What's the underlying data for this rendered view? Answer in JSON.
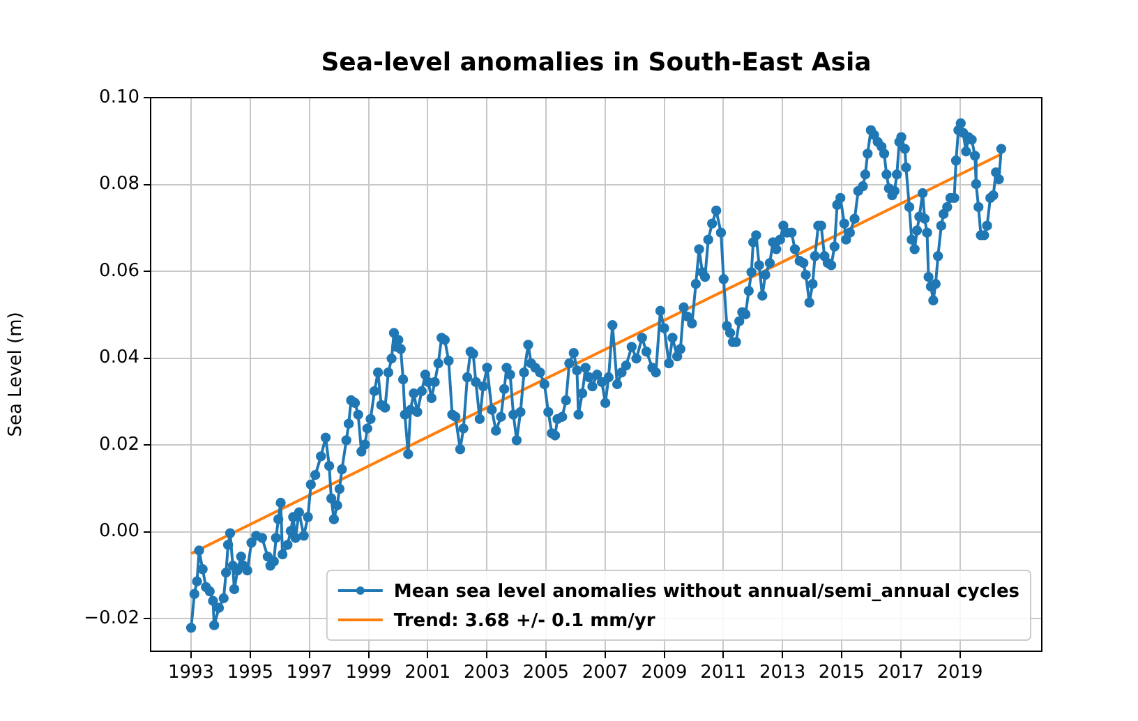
{
  "chart_data": {
    "type": "line",
    "title": "Sea-level anomalies in South-East Asia",
    "ylabel": "Sea Level (m)",
    "xlim": [
      1991.63,
      2021.77
    ],
    "ylim": [
      -0.0275,
      0.1
    ],
    "xticks": [
      1993,
      1995,
      1997,
      1999,
      2001,
      2003,
      2005,
      2007,
      2009,
      2011,
      2013,
      2015,
      2017,
      2019
    ],
    "yticks": [
      {
        "value": -0.02,
        "label": "−0.02"
      },
      {
        "value": 0,
        "label": "0.00"
      },
      {
        "value": 0.02,
        "label": "0.02"
      },
      {
        "value": 0.04,
        "label": "0.04"
      },
      {
        "value": 0.06,
        "label": "0.06"
      },
      {
        "value": 0.08,
        "label": "0.08"
      },
      {
        "value": 0.1,
        "label": "0.10"
      }
    ],
    "grid": true,
    "legend": "bottom right",
    "marker": "circle",
    "line_style": "solid",
    "series": [
      {
        "name": "Mean sea level anomalies without annual/semi_annual cycles",
        "color": "#1f77b4",
        "x": [
          1993.0,
          1993.11,
          1993.2,
          1993.27,
          1993.39,
          1993.5,
          1993.63,
          1993.74,
          1993.78,
          1993.94,
          1994.1,
          1994.18,
          1994.25,
          1994.32,
          1994.41,
          1994.46,
          1994.57,
          1994.69,
          1994.77,
          1994.9,
          1995.04,
          1995.2,
          1995.4,
          1995.59,
          1995.68,
          1995.8,
          1995.87,
          1995.95,
          1996.03,
          1996.09,
          1996.26,
          1996.37,
          1996.45,
          1996.53,
          1996.65,
          1996.81,
          1996.95,
          1997.05,
          1997.2,
          1997.39,
          1997.55,
          1997.67,
          1997.74,
          1997.83,
          1997.94,
          1998.02,
          1998.1,
          1998.25,
          1998.33,
          1998.41,
          1998.54,
          1998.65,
          1998.76,
          1998.88,
          1998.96,
          1999.07,
          1999.2,
          1999.32,
          1999.43,
          1999.56,
          1999.67,
          1999.78,
          1999.86,
          1999.94,
          2000.01,
          2000.09,
          2000.17,
          2000.23,
          2000.34,
          2000.42,
          2000.53,
          2000.65,
          2000.8,
          2000.92,
          2001.02,
          2001.13,
          2001.24,
          2001.36,
          2001.47,
          2001.58,
          2001.71,
          2001.83,
          2001.94,
          2002.1,
          2002.21,
          2002.34,
          2002.45,
          2002.54,
          2002.63,
          2002.76,
          2002.88,
          2003.01,
          2003.17,
          2003.31,
          2003.48,
          2003.59,
          2003.67,
          2003.79,
          2003.9,
          2004.01,
          2004.14,
          2004.26,
          2004.4,
          2004.5,
          2004.64,
          2004.8,
          2004.95,
          2005.08,
          2005.2,
          2005.31,
          2005.39,
          2005.55,
          2005.68,
          2005.79,
          2005.94,
          2006.05,
          2006.1,
          2006.23,
          2006.34,
          2006.46,
          2006.57,
          2006.73,
          2006.89,
          2007.01,
          2007.12,
          2007.25,
          2007.41,
          2007.56,
          2007.71,
          2007.9,
          2008.06,
          2008.25,
          2008.4,
          2008.6,
          2008.72,
          2008.87,
          2009.0,
          2009.16,
          2009.28,
          2009.44,
          2009.55,
          2009.66,
          2009.78,
          2009.94,
          2010.07,
          2010.18,
          2010.29,
          2010.38,
          2010.49,
          2010.62,
          2010.76,
          2010.92,
          2011.01,
          2011.12,
          2011.23,
          2011.32,
          2011.43,
          2011.54,
          2011.64,
          2011.75,
          2011.86,
          2011.95,
          2012.01,
          2012.11,
          2012.21,
          2012.32,
          2012.42,
          2012.57,
          2012.68,
          2012.79,
          2012.92,
          2013.03,
          2013.15,
          2013.31,
          2013.42,
          2013.58,
          2013.71,
          2013.79,
          2013.91,
          2014.02,
          2014.1,
          2014.21,
          2014.31,
          2014.42,
          2014.53,
          2014.65,
          2014.76,
          2014.85,
          2014.96,
          2015.09,
          2015.15,
          2015.28,
          2015.44,
          2015.56,
          2015.72,
          2015.8,
          2015.88,
          2015.99,
          2016.1,
          2016.22,
          2016.35,
          2016.44,
          2016.52,
          2016.6,
          2016.71,
          2016.79,
          2016.87,
          2016.95,
          2017.02,
          2017.14,
          2017.18,
          2017.29,
          2017.37,
          2017.47,
          2017.55,
          2017.63,
          2017.74,
          2017.81,
          2017.89,
          2017.94,
          2018.02,
          2018.1,
          2018.18,
          2018.26,
          2018.37,
          2018.45,
          2018.57,
          2018.68,
          2018.81,
          2018.87,
          2018.95,
          2019.03,
          2019.11,
          2019.21,
          2019.29,
          2019.4,
          2019.51,
          2019.55,
          2019.63,
          2019.71,
          2019.82,
          2019.92,
          2020.03,
          2020.13,
          2020.22,
          2020.32,
          2020.4
        ],
        "values": [
          -0.0221,
          -0.0143,
          -0.0114,
          -0.0043,
          -0.0086,
          -0.0127,
          -0.0137,
          -0.0159,
          -0.0215,
          -0.0175,
          -0.0153,
          -0.0094,
          -0.003,
          -0.0003,
          -0.0078,
          -0.0132,
          -0.0089,
          -0.0057,
          -0.0078,
          -0.0089,
          -0.0025,
          -0.0009,
          -0.0014,
          -0.0057,
          -0.0078,
          -0.0068,
          -0.0014,
          0.0029,
          0.0067,
          -0.0052,
          -0.003,
          0.0002,
          0.0034,
          -0.0014,
          0.0045,
          -0.0009,
          0.0034,
          0.0109,
          0.0131,
          0.0174,
          0.0217,
          0.0152,
          0.0077,
          0.0029,
          0.0061,
          0.0099,
          0.0144,
          0.0211,
          0.0249,
          0.0303,
          0.0297,
          0.027,
          0.0185,
          0.0201,
          0.0238,
          0.026,
          0.0324,
          0.0367,
          0.0292,
          0.0286,
          0.0367,
          0.0399,
          0.0458,
          0.0426,
          0.0442,
          0.0421,
          0.0351,
          0.027,
          0.0179,
          0.0281,
          0.0319,
          0.0276,
          0.0324,
          0.0362,
          0.0345,
          0.0308,
          0.0345,
          0.0388,
          0.0447,
          0.0442,
          0.0394,
          0.027,
          0.0265,
          0.019,
          0.0238,
          0.0356,
          0.0415,
          0.041,
          0.0345,
          0.026,
          0.0335,
          0.0378,
          0.0281,
          0.0233,
          0.0265,
          0.0329,
          0.0378,
          0.0362,
          0.027,
          0.0211,
          0.0276,
          0.0367,
          0.0431,
          0.0388,
          0.0378,
          0.0367,
          0.034,
          0.0276,
          0.0227,
          0.0222,
          0.026,
          0.0265,
          0.0303,
          0.0388,
          0.0412,
          0.0372,
          0.027,
          0.0319,
          0.0378,
          0.0356,
          0.0335,
          0.0362,
          0.0345,
          0.0297,
          0.0356,
          0.0476,
          0.034,
          0.0367,
          0.0383,
          0.0426,
          0.0399,
          0.0447,
          0.0415,
          0.0378,
          0.0367,
          0.0509,
          0.0469,
          0.0388,
          0.0447,
          0.0404,
          0.0421,
          0.0517,
          0.0496,
          0.048,
          0.0571,
          0.0651,
          0.0598,
          0.0587,
          0.0673,
          0.071,
          0.074,
          0.0689,
          0.0582,
          0.0474,
          0.0458,
          0.0437,
          0.0437,
          0.0485,
          0.0506,
          0.0501,
          0.0555,
          0.0598,
          0.0667,
          0.0683,
          0.0614,
          0.0544,
          0.0592,
          0.0619,
          0.0667,
          0.0651,
          0.0673,
          0.0705,
          0.0689,
          0.0689,
          0.0651,
          0.0624,
          0.0619,
          0.0592,
          0.0528,
          0.0571,
          0.0635,
          0.0705,
          0.0705,
          0.0635,
          0.0619,
          0.0614,
          0.0657,
          0.0753,
          0.0769,
          0.071,
          0.0673,
          0.0689,
          0.0721,
          0.0785,
          0.0796,
          0.0823,
          0.0871,
          0.0925,
          0.0914,
          0.0898,
          0.0887,
          0.0871,
          0.0823,
          0.0791,
          0.0775,
          0.0785,
          0.0823,
          0.0898,
          0.0909,
          0.0882,
          0.0839,
          0.0748,
          0.0673,
          0.0651,
          0.0694,
          0.0726,
          0.078,
          0.0721,
          0.0689,
          0.0587,
          0.0565,
          0.0533,
          0.0571,
          0.0635,
          0.0705,
          0.0732,
          0.0748,
          0.0769,
          0.0769,
          0.0855,
          0.0925,
          0.0941,
          0.0919,
          0.0876,
          0.0909,
          0.0903,
          0.0866,
          0.0801,
          0.0748,
          0.0683,
          0.0683,
          0.0705,
          0.0769,
          0.0775,
          0.0828,
          0.0812,
          0.0882
        ]
      },
      {
        "name": "Trend: 3.68 +/- 0.1 mm/yr",
        "color": "#ff7f0e",
        "marker": "none",
        "x": [
          1993.0,
          2020.4
        ],
        "values": [
          -0.005,
          0.087
        ]
      }
    ]
  }
}
